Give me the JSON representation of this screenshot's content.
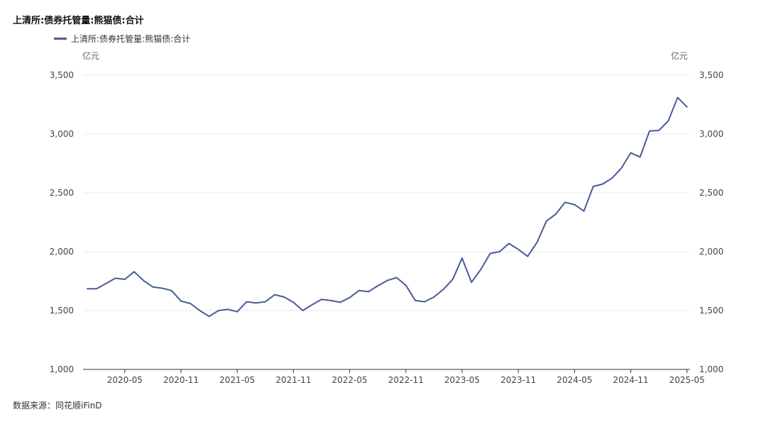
{
  "title": "上清所:债券托管量:熊猫债:合计",
  "legend": {
    "label": "上清所:债券托管量:熊猫债:合计"
  },
  "units": {
    "left": "亿元",
    "right": "亿元"
  },
  "source": "数据来源：同花顺iFinD",
  "colors": {
    "series": "#4a5a9a",
    "grid": "#e8e8e8",
    "axis": "#333333"
  },
  "chart_data": {
    "type": "line",
    "title": "上清所:债券托管量:熊猫债:合计",
    "ylabel": "亿元",
    "ylim": [
      1000,
      3500
    ],
    "yticks": [
      1000,
      1500,
      2000,
      2500,
      3000,
      3500
    ],
    "ytick_labels": [
      "1,000",
      "1,500",
      "2,000",
      "2,500",
      "3,000",
      "3,500"
    ],
    "xtick_labels": [
      "2020-05",
      "2020-11",
      "2021-05",
      "2021-11",
      "2022-05",
      "2022-11",
      "2023-05",
      "2023-11",
      "2024-05",
      "2024-11",
      "2025-05"
    ],
    "xtick_months": [
      4,
      10,
      16,
      22,
      28,
      34,
      40,
      46,
      52,
      58,
      64
    ],
    "grid": true,
    "legend_position": "top-left",
    "series": [
      {
        "name": "上清所:债券托管量:熊猫债:合计",
        "x": [
          "2020-01",
          "2020-02",
          "2020-03",
          "2020-04",
          "2020-05",
          "2020-06",
          "2020-07",
          "2020-08",
          "2020-09",
          "2020-10",
          "2020-11",
          "2020-12",
          "2021-01",
          "2021-02",
          "2021-03",
          "2021-04",
          "2021-05",
          "2021-06",
          "2021-07",
          "2021-08",
          "2021-09",
          "2021-10",
          "2021-11",
          "2021-12",
          "2022-01",
          "2022-02",
          "2022-03",
          "2022-04",
          "2022-05",
          "2022-06",
          "2022-07",
          "2022-08",
          "2022-09",
          "2022-10",
          "2022-11",
          "2022-12",
          "2023-01",
          "2023-02",
          "2023-03",
          "2023-04",
          "2023-05",
          "2023-06",
          "2023-07",
          "2023-08",
          "2023-09",
          "2023-10",
          "2023-11",
          "2023-12",
          "2024-01",
          "2024-02",
          "2024-03",
          "2024-04",
          "2024-05",
          "2024-06",
          "2024-07",
          "2024-08",
          "2024-09",
          "2024-10",
          "2024-11",
          "2024-12",
          "2025-01",
          "2025-02",
          "2025-03",
          "2025-04",
          "2025-05"
        ],
        "values": [
          1685,
          1685,
          1730,
          1775,
          1765,
          1830,
          1755,
          1700,
          1690,
          1670,
          1580,
          1560,
          1500,
          1450,
          1500,
          1510,
          1490,
          1575,
          1565,
          1575,
          1635,
          1615,
          1570,
          1500,
          1550,
          1595,
          1585,
          1570,
          1610,
          1670,
          1660,
          1710,
          1755,
          1780,
          1715,
          1585,
          1575,
          1615,
          1680,
          1765,
          1945,
          1740,
          1850,
          1985,
          2000,
          2070,
          2020,
          1960,
          2080,
          2260,
          2320,
          2420,
          2400,
          2345,
          2555,
          2575,
          2625,
          2710,
          2840,
          2805,
          3025,
          3030,
          3110,
          3310,
          3230
        ]
      }
    ]
  }
}
